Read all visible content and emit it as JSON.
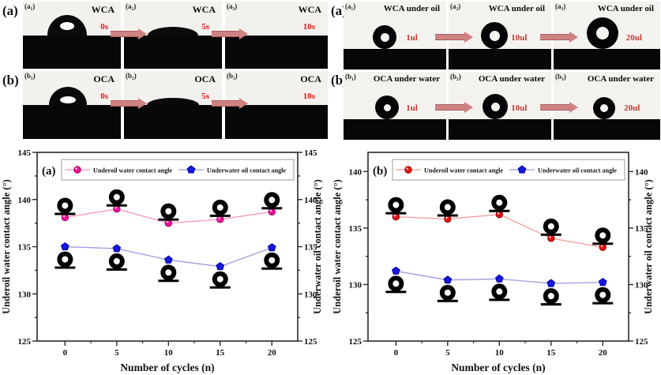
{
  "photos_left": {
    "label_a": "(a)",
    "label_b": "(b)",
    "row_a": [
      {
        "sub": "(a₁)",
        "title": "WCA",
        "tag": "0s"
      },
      {
        "sub": "(a₂)",
        "title": "WCA",
        "tag": "5s"
      },
      {
        "sub": "(a₃)",
        "title": "WCA",
        "tag": "10s"
      }
    ],
    "row_b": [
      {
        "sub": "(b₁)",
        "title": "OCA",
        "tag": "0s"
      },
      {
        "sub": "(b₂)",
        "title": "OCA",
        "tag": "5s"
      },
      {
        "sub": "(b₃)",
        "title": "OCA",
        "tag": "10s"
      }
    ]
  },
  "photos_right": {
    "label_a": "(a)",
    "label_b": "(b)",
    "row_a": [
      {
        "sub": "(a₁)",
        "title": "WCA under oil",
        "tag": "1ul"
      },
      {
        "sub": "(a₂)",
        "title": "WCA under oil",
        "tag": "10ul"
      },
      {
        "sub": "(a₃)",
        "title": "WCA under oil",
        "tag": "20ul"
      }
    ],
    "row_b": [
      {
        "sub": "(b₁)",
        "title": "OCA under water",
        "tag": "1ul"
      },
      {
        "sub": "(b₂)",
        "title": "OCA under water",
        "tag": "10ul"
      },
      {
        "sub": "(b₃)",
        "title": "OCA under water",
        "tag": "20ul"
      }
    ]
  },
  "chart_data": [
    {
      "type": "line",
      "panel_label": "(a)",
      "x": [
        0,
        5,
        10,
        15,
        20
      ],
      "xticks": [
        0,
        5,
        10,
        15,
        20
      ],
      "xlabel": "Number of cycles (n)",
      "ylabel_left": "Underoil water contact angle (°)",
      "ylabel_right": "Underwater oil contact angle (°)",
      "ylim": [
        125,
        145
      ],
      "yticks": [
        125,
        130,
        135,
        140,
        145
      ],
      "grid": false,
      "legend_position": "top-inside",
      "series": [
        {
          "name": "Underoil water contact angle",
          "marker": "circle",
          "icon": "above",
          "color": "#f0109b",
          "edge": "#a8005f",
          "line": "#f598c4",
          "values": [
            138.1,
            139.0,
            137.5,
            137.9,
            138.7
          ]
        },
        {
          "name": "Underwater oil contact angle",
          "marker": "pentagon",
          "icon": "below",
          "color": "#1717e0",
          "edge": "#0000a0",
          "line": "#9a9ae0",
          "values": [
            135.0,
            134.8,
            133.6,
            132.9,
            134.9
          ]
        }
      ]
    },
    {
      "type": "line",
      "panel_label": "(b)",
      "x": [
        0,
        5,
        10,
        15,
        20
      ],
      "xticks": [
        0,
        5,
        10,
        15,
        20
      ],
      "xlabel": "Number of cycles (n)",
      "ylabel_left": "Underoil water contact angle (°)",
      "ylabel_right": "Underwater oil contact angle (°)",
      "ylim": [
        125,
        141.7
      ],
      "yticks": [
        125,
        130,
        135,
        140
      ],
      "grid": false,
      "legend_position": "top-inside",
      "series": [
        {
          "name": "Underoil water contact angle",
          "marker": "circle",
          "icon": "above",
          "color": "#e41616",
          "edge": "#8f0000",
          "line": "#f29b9b",
          "values": [
            136.0,
            135.8,
            136.2,
            134.1,
            133.3
          ]
        },
        {
          "name": "Underwater oil contact angle",
          "marker": "pentagon",
          "icon": "below",
          "color": "#1717e0",
          "edge": "#0000a0",
          "line": "#9a9ae0",
          "values": [
            131.2,
            130.4,
            130.5,
            130.1,
            130.2
          ]
        }
      ]
    }
  ],
  "colors": {
    "arrow_fill": "#cf8282",
    "arrow_edge": "#a85e5e",
    "time_label": "#e01616",
    "volume_label": "#c23a2e",
    "substrate": "#070707",
    "photo_background": "#f3f1ed"
  }
}
